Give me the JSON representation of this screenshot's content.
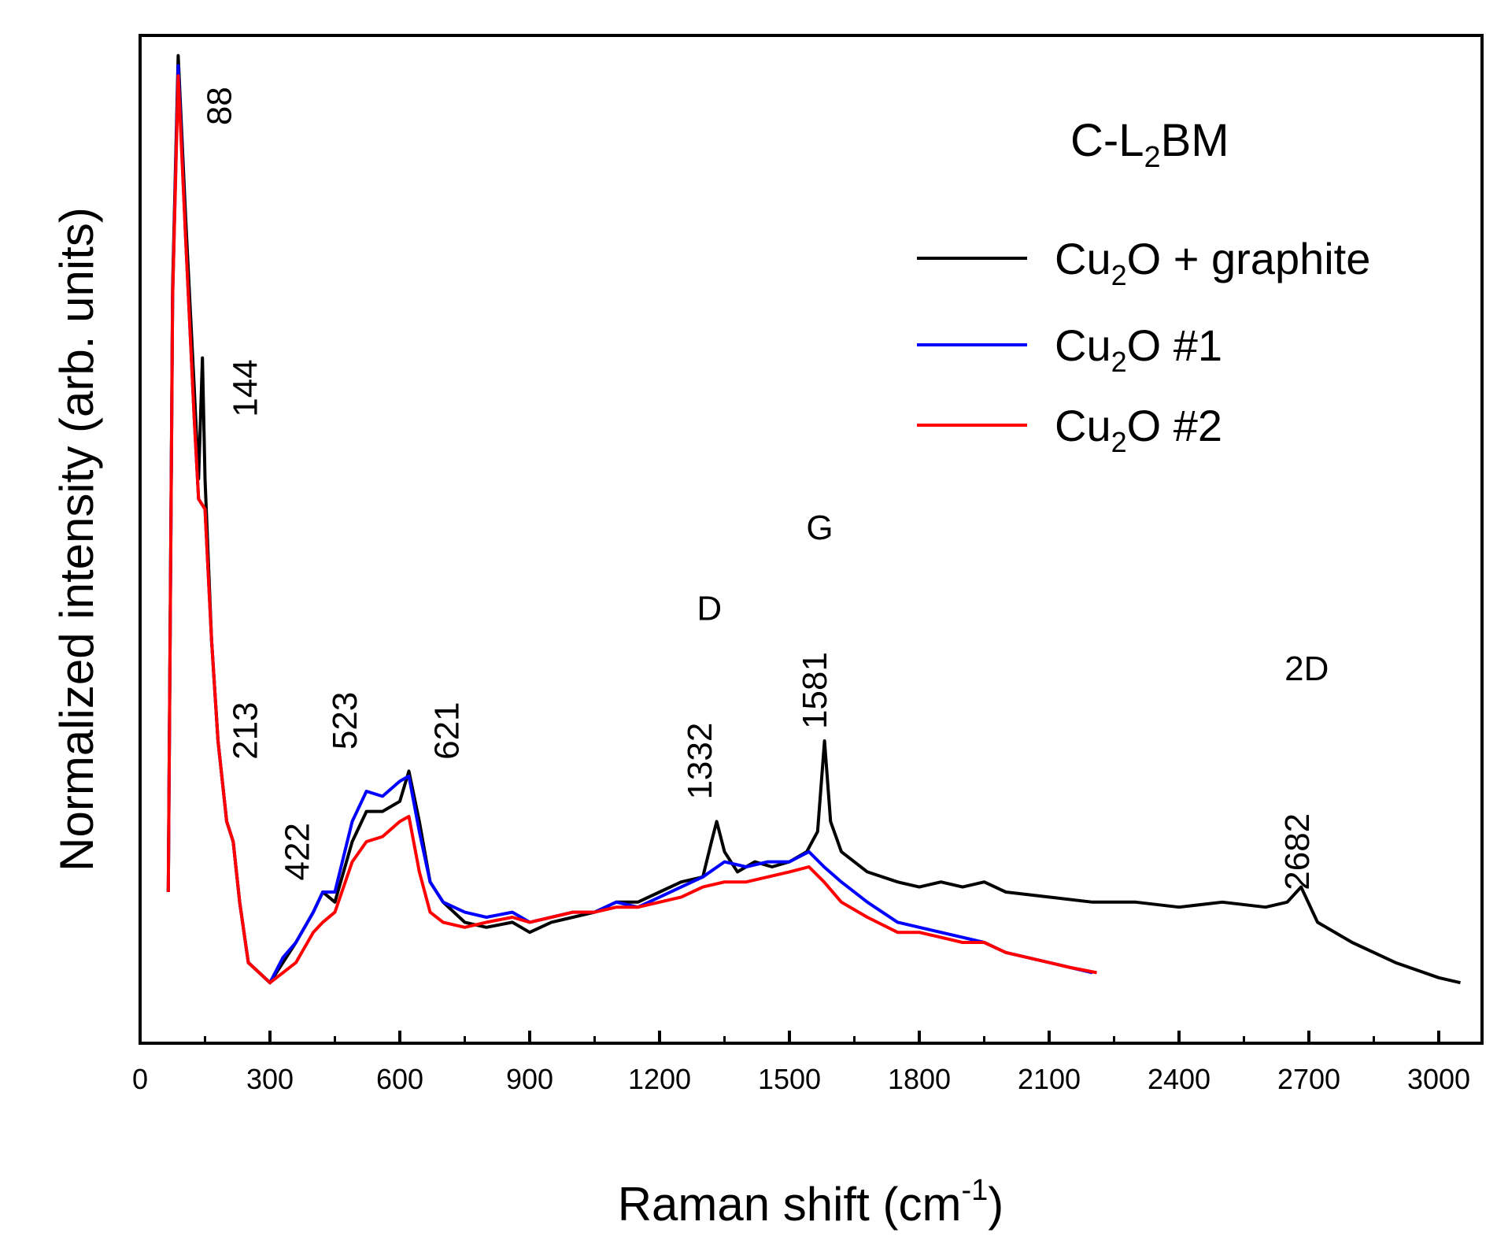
{
  "chart_data": {
    "type": "line",
    "sample_label": "C-L",
    "sample_label_sub": "2",
    "sample_label_tail": "BM",
    "xlabel": "Raman shift (cm",
    "xlabel_sup": "-1",
    "xlabel_tail": ")",
    "ylabel": "Normalized intensity (arb. units)",
    "xlim": [
      0,
      3100
    ],
    "ylim": [
      0,
      1
    ],
    "x_ticks": [
      "0",
      "300",
      "600",
      "900",
      "1200",
      "1500",
      "1800",
      "2100",
      "2400",
      "2700",
      "3000"
    ],
    "x_tick_values": [
      0,
      300,
      600,
      900,
      1200,
      1500,
      1800,
      2100,
      2400,
      2700,
      3000
    ],
    "y_ticks_labeled": false,
    "grid": false,
    "legend_position": "top-right",
    "series": [
      {
        "name": "Cu",
        "name_sub": "2",
        "name_tail": "O + graphite",
        "color": "#000000",
        "points": [
          [
            65,
            0.15
          ],
          [
            75,
            0.75
          ],
          [
            88,
            0.98
          ],
          [
            105,
            0.82
          ],
          [
            125,
            0.65
          ],
          [
            135,
            0.56
          ],
          [
            144,
            0.68
          ],
          [
            150,
            0.56
          ],
          [
            165,
            0.4
          ],
          [
            180,
            0.3
          ],
          [
            200,
            0.22
          ],
          [
            215,
            0.2
          ],
          [
            230,
            0.14
          ],
          [
            250,
            0.08
          ],
          [
            275,
            0.07
          ],
          [
            300,
            0.06
          ],
          [
            330,
            0.08
          ],
          [
            360,
            0.1
          ],
          [
            400,
            0.13
          ],
          [
            422,
            0.15
          ],
          [
            450,
            0.14
          ],
          [
            490,
            0.2
          ],
          [
            523,
            0.23
          ],
          [
            560,
            0.23
          ],
          [
            600,
            0.24
          ],
          [
            621,
            0.27
          ],
          [
            645,
            0.22
          ],
          [
            670,
            0.16
          ],
          [
            700,
            0.14
          ],
          [
            750,
            0.12
          ],
          [
            800,
            0.115
          ],
          [
            860,
            0.12
          ],
          [
            900,
            0.11
          ],
          [
            950,
            0.12
          ],
          [
            1000,
            0.125
          ],
          [
            1050,
            0.13
          ],
          [
            1100,
            0.14
          ],
          [
            1150,
            0.14
          ],
          [
            1200,
            0.15
          ],
          [
            1250,
            0.16
          ],
          [
            1300,
            0.165
          ],
          [
            1320,
            0.2
          ],
          [
            1332,
            0.22
          ],
          [
            1350,
            0.19
          ],
          [
            1380,
            0.17
          ],
          [
            1420,
            0.18
          ],
          [
            1460,
            0.175
          ],
          [
            1500,
            0.18
          ],
          [
            1540,
            0.19
          ],
          [
            1565,
            0.21
          ],
          [
            1581,
            0.3
          ],
          [
            1595,
            0.22
          ],
          [
            1620,
            0.19
          ],
          [
            1680,
            0.17
          ],
          [
            1750,
            0.16
          ],
          [
            1800,
            0.155
          ],
          [
            1850,
            0.16
          ],
          [
            1900,
            0.155
          ],
          [
            1950,
            0.16
          ],
          [
            2000,
            0.15
          ],
          [
            2100,
            0.145
          ],
          [
            2200,
            0.14
          ],
          [
            2300,
            0.14
          ],
          [
            2400,
            0.135
          ],
          [
            2500,
            0.14
          ],
          [
            2600,
            0.135
          ],
          [
            2650,
            0.14
          ],
          [
            2682,
            0.155
          ],
          [
            2720,
            0.12
          ],
          [
            2800,
            0.1
          ],
          [
            2900,
            0.08
          ],
          [
            3000,
            0.065
          ],
          [
            3050,
            0.06
          ]
        ]
      },
      {
        "name": "Cu",
        "name_sub": "2",
        "name_tail": "O #1",
        "color": "#0000ff",
        "points": [
          [
            65,
            0.15
          ],
          [
            75,
            0.74
          ],
          [
            88,
            0.97
          ],
          [
            105,
            0.8
          ],
          [
            125,
            0.62
          ],
          [
            135,
            0.54
          ],
          [
            150,
            0.53
          ],
          [
            165,
            0.4
          ],
          [
            180,
            0.3
          ],
          [
            200,
            0.22
          ],
          [
            215,
            0.2
          ],
          [
            230,
            0.14
          ],
          [
            250,
            0.08
          ],
          [
            275,
            0.07
          ],
          [
            300,
            0.06
          ],
          [
            330,
            0.085
          ],
          [
            360,
            0.1
          ],
          [
            400,
            0.13
          ],
          [
            422,
            0.15
          ],
          [
            450,
            0.15
          ],
          [
            490,
            0.22
          ],
          [
            523,
            0.25
          ],
          [
            560,
            0.245
          ],
          [
            600,
            0.26
          ],
          [
            621,
            0.265
          ],
          [
            645,
            0.21
          ],
          [
            670,
            0.16
          ],
          [
            700,
            0.14
          ],
          [
            750,
            0.13
          ],
          [
            800,
            0.125
          ],
          [
            860,
            0.13
          ],
          [
            900,
            0.12
          ],
          [
            950,
            0.125
          ],
          [
            1000,
            0.13
          ],
          [
            1050,
            0.13
          ],
          [
            1100,
            0.14
          ],
          [
            1150,
            0.135
          ],
          [
            1200,
            0.145
          ],
          [
            1250,
            0.155
          ],
          [
            1300,
            0.165
          ],
          [
            1350,
            0.18
          ],
          [
            1400,
            0.175
          ],
          [
            1450,
            0.18
          ],
          [
            1500,
            0.18
          ],
          [
            1545,
            0.19
          ],
          [
            1580,
            0.175
          ],
          [
            1620,
            0.16
          ],
          [
            1680,
            0.14
          ],
          [
            1750,
            0.12
          ],
          [
            1800,
            0.115
          ],
          [
            1850,
            0.11
          ],
          [
            1900,
            0.105
          ],
          [
            1950,
            0.1
          ],
          [
            2000,
            0.09
          ],
          [
            2050,
            0.085
          ],
          [
            2100,
            0.08
          ],
          [
            2150,
            0.075
          ],
          [
            2200,
            0.07
          ]
        ]
      },
      {
        "name": "Cu",
        "name_sub": "2",
        "name_tail": "O #2",
        "color": "#ff0000",
        "points": [
          [
            65,
            0.15
          ],
          [
            75,
            0.74
          ],
          [
            88,
            0.96
          ],
          [
            105,
            0.8
          ],
          [
            125,
            0.62
          ],
          [
            135,
            0.54
          ],
          [
            150,
            0.53
          ],
          [
            165,
            0.4
          ],
          [
            180,
            0.3
          ],
          [
            200,
            0.22
          ],
          [
            215,
            0.2
          ],
          [
            230,
            0.14
          ],
          [
            250,
            0.08
          ],
          [
            275,
            0.07
          ],
          [
            300,
            0.06
          ],
          [
            330,
            0.07
          ],
          [
            360,
            0.08
          ],
          [
            400,
            0.11
          ],
          [
            422,
            0.12
          ],
          [
            450,
            0.13
          ],
          [
            490,
            0.18
          ],
          [
            523,
            0.2
          ],
          [
            560,
            0.205
          ],
          [
            600,
            0.22
          ],
          [
            621,
            0.225
          ],
          [
            645,
            0.17
          ],
          [
            670,
            0.13
          ],
          [
            700,
            0.12
          ],
          [
            750,
            0.115
          ],
          [
            800,
            0.12
          ],
          [
            860,
            0.125
          ],
          [
            900,
            0.12
          ],
          [
            950,
            0.125
          ],
          [
            1000,
            0.13
          ],
          [
            1050,
            0.13
          ],
          [
            1100,
            0.135
          ],
          [
            1150,
            0.135
          ],
          [
            1200,
            0.14
          ],
          [
            1250,
            0.145
          ],
          [
            1300,
            0.155
          ],
          [
            1350,
            0.16
          ],
          [
            1400,
            0.16
          ],
          [
            1450,
            0.165
          ],
          [
            1500,
            0.17
          ],
          [
            1545,
            0.175
          ],
          [
            1580,
            0.16
          ],
          [
            1620,
            0.14
          ],
          [
            1680,
            0.125
          ],
          [
            1750,
            0.11
          ],
          [
            1800,
            0.11
          ],
          [
            1850,
            0.105
          ],
          [
            1900,
            0.1
          ],
          [
            1950,
            0.1
          ],
          [
            2000,
            0.09
          ],
          [
            2050,
            0.085
          ],
          [
            2100,
            0.08
          ],
          [
            2150,
            0.075
          ],
          [
            2210,
            0.07
          ]
        ]
      }
    ],
    "annotations": [
      {
        "text": "88",
        "x": 210,
        "y": 0.93,
        "rotate": true
      },
      {
        "text": "144",
        "x": 270,
        "y": 0.65,
        "rotate": true
      },
      {
        "text": "213",
        "x": 270,
        "y": 0.31,
        "rotate": true
      },
      {
        "text": "422",
        "x": 390,
        "y": 0.19,
        "rotate": true
      },
      {
        "text": "523",
        "x": 500,
        "y": 0.32,
        "rotate": true
      },
      {
        "text": "621",
        "x": 735,
        "y": 0.31,
        "rotate": true
      },
      {
        "text": "1332",
        "x": 1320,
        "y": 0.28,
        "rotate": true
      },
      {
        "text": "1581",
        "x": 1585,
        "y": 0.35,
        "rotate": true
      },
      {
        "text": "2682",
        "x": 2700,
        "y": 0.19,
        "rotate": true
      },
      {
        "text": "D",
        "x": 1315,
        "y": 0.42,
        "rotate": false
      },
      {
        "text": "G",
        "x": 1570,
        "y": 0.5,
        "rotate": false
      },
      {
        "text": "2D",
        "x": 2695,
        "y": 0.36,
        "rotate": false
      }
    ]
  }
}
